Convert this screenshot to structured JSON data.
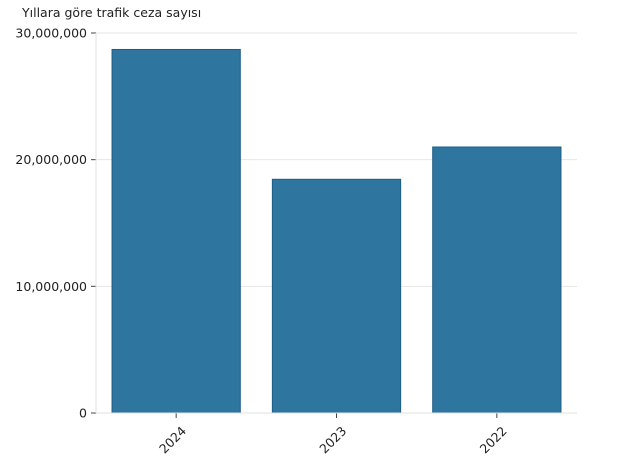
{
  "chart_data": {
    "type": "bar",
    "title": "Yıllara göre trafik ceza sayısı",
    "categories": [
      "2024",
      "2023",
      "2022"
    ],
    "values": [
      28700000,
      18450000,
      21000000
    ],
    "ylim": [
      0,
      30000000
    ],
    "yticks": [
      0,
      10000000,
      20000000,
      30000000
    ],
    "ytick_labels": [
      "0",
      "10,000,000",
      "20,000,000",
      "30,000,000"
    ],
    "xlabel": "",
    "ylabel": "",
    "grid": true,
    "bar_color": "#2e75a0",
    "bar_edge_color": "#1d5d85",
    "grid_color": "#e6e6e6"
  }
}
